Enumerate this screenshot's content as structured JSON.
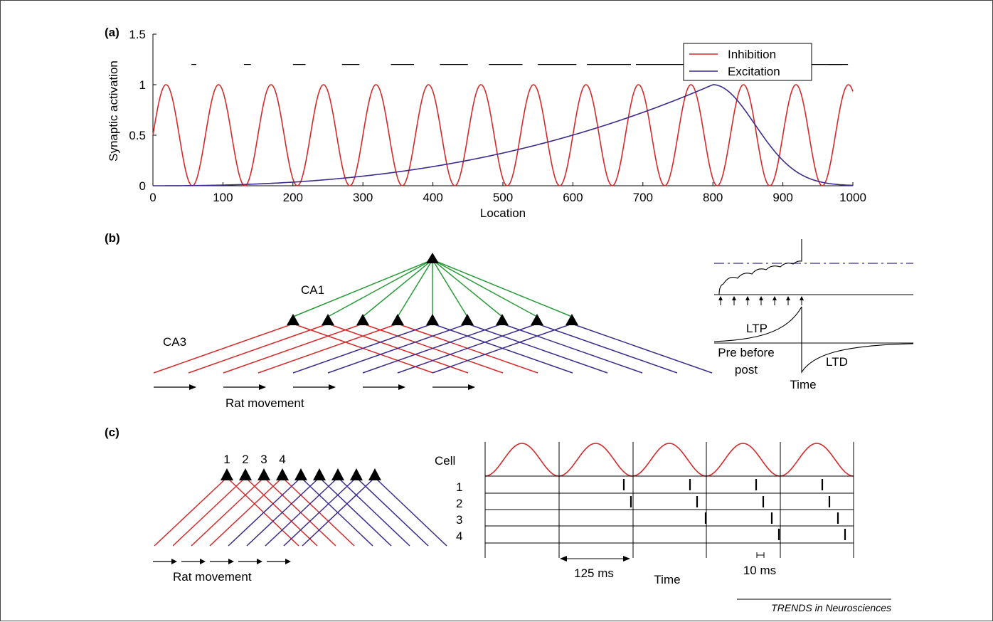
{
  "figure": {
    "panel_a_label": "(a)",
    "panel_b_label": "(b)",
    "panel_c_label": "(c)",
    "footer": "TRENDS in Neurosciences"
  },
  "chart_data": {
    "type": "line",
    "title": "",
    "xlabel": "Location",
    "ylabel": "Synaptic activation",
    "xlim": [
      0,
      1000
    ],
    "ylim": [
      0,
      1.5
    ],
    "x_ticks": [
      0,
      100,
      200,
      300,
      400,
      500,
      600,
      700,
      800,
      900,
      1000
    ],
    "y_ticks": [
      0,
      0.5,
      1,
      1.5
    ],
    "y_tick_labels": [
      "0",
      "0.5",
      "1",
      "1.5"
    ],
    "grid": false,
    "legend_position": "top-right",
    "inhibition_period": 75,
    "excitation_peak_location": 800,
    "series": [
      {
        "name": "Inhibition",
        "color": "#d42a2a",
        "x": [
          0,
          18.75,
          56.25,
          93.75,
          131.25,
          168.75,
          206.25,
          243.75,
          281.25,
          318.75,
          356.25,
          393.75,
          431.25,
          468.75,
          506.25,
          543.75,
          581.25,
          618.75,
          656.25,
          693.75,
          731.25,
          768.75,
          806.25,
          843.75,
          881.25,
          918.75,
          956.25,
          993.75,
          1000
        ],
        "values": [
          0.5,
          1,
          0,
          1,
          0,
          1,
          0,
          1,
          0,
          1,
          0,
          1,
          0,
          1,
          0,
          1,
          0,
          1,
          0,
          1,
          0,
          1,
          0,
          1,
          0,
          1,
          0,
          1,
          0.99
        ]
      },
      {
        "name": "Excitation",
        "color": "#3d2a8c",
        "x": [
          0,
          100,
          200,
          300,
          400,
          500,
          600,
          700,
          750,
          800,
          850,
          900,
          950,
          1000
        ],
        "values": [
          0.0,
          0.02,
          0.07,
          0.15,
          0.29,
          0.47,
          0.67,
          0.86,
          0.94,
          1.0,
          0.78,
          0.35,
          0.1,
          0.02
        ]
      }
    ],
    "phase_dashes": {
      "y": 1.2,
      "segments": [
        [
          55,
          62
        ],
        [
          130,
          140
        ],
        [
          200,
          218
        ],
        [
          270,
          295
        ],
        [
          340,
          373
        ],
        [
          410,
          450
        ],
        [
          480,
          528
        ],
        [
          550,
          605
        ],
        [
          620,
          683
        ],
        [
          690,
          760
        ],
        [
          760,
          838
        ],
        [
          830,
          915
        ],
        [
          900,
          993
        ],
        [
          965,
          985
        ]
      ]
    }
  },
  "panel_b": {
    "ca1_label": "CA1",
    "ca3_label": "CA3",
    "movement_label": "Rat movement",
    "inset": {
      "ltp_label": "LTP",
      "ltd_label": "LTD",
      "pre_before_post_label": "Pre before\npost",
      "pre_before_post_line1": "Pre before",
      "pre_before_post_line2": "post",
      "time_label": "Time"
    }
  },
  "panel_c": {
    "cell_numbers": [
      "1",
      "2",
      "3",
      "4"
    ],
    "movement_label": "Rat movement",
    "cell_header": "Cell",
    "row_labels": [
      "1",
      "2",
      "3",
      "4"
    ],
    "interval_label": "125 ms",
    "phase_step_label": "10 ms",
    "time_label": "Time"
  },
  "colors": {
    "inhibition": "#d42a2a",
    "excitation": "#3d2a8c",
    "ca1_projection": "#2a9a3a",
    "threshold": "#3d2a8c",
    "ink": "#000000"
  }
}
